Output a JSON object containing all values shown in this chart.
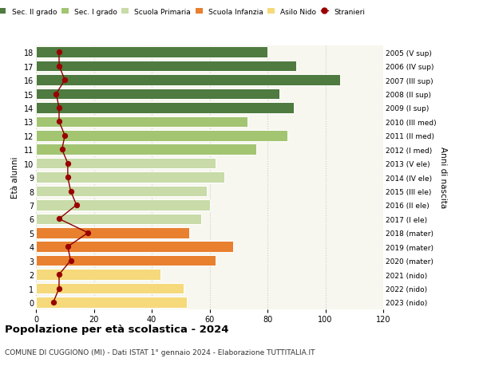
{
  "ages": [
    0,
    1,
    2,
    3,
    4,
    5,
    6,
    7,
    8,
    9,
    10,
    11,
    12,
    13,
    14,
    15,
    16,
    17,
    18
  ],
  "labels_right": [
    "2023 (nido)",
    "2022 (nido)",
    "2021 (nido)",
    "2020 (mater)",
    "2019 (mater)",
    "2018 (mater)",
    "2017 (I ele)",
    "2016 (II ele)",
    "2015 (III ele)",
    "2014 (IV ele)",
    "2013 (V ele)",
    "2012 (I med)",
    "2011 (II med)",
    "2010 (III med)",
    "2009 (I sup)",
    "2008 (II sup)",
    "2007 (III sup)",
    "2006 (IV sup)",
    "2005 (V sup)"
  ],
  "bar_values": [
    52,
    51,
    43,
    62,
    68,
    53,
    57,
    60,
    59,
    65,
    62,
    76,
    87,
    73,
    89,
    84,
    105,
    90,
    80
  ],
  "bar_colors": [
    "#f5d97a",
    "#f5d97a",
    "#f5d97a",
    "#e88030",
    "#e88030",
    "#e88030",
    "#c8dba8",
    "#c8dba8",
    "#c8dba8",
    "#c8dba8",
    "#c8dba8",
    "#a3c572",
    "#a3c572",
    "#a3c572",
    "#4f7a40",
    "#4f7a40",
    "#4f7a40",
    "#4f7a40",
    "#4f7a40"
  ],
  "stranieri": [
    6,
    8,
    8,
    12,
    11,
    18,
    8,
    14,
    12,
    11,
    11,
    9,
    10,
    8,
    8,
    7,
    10,
    8,
    8
  ],
  "legend_labels": [
    "Sec. II grado",
    "Sec. I grado",
    "Scuola Primaria",
    "Scuola Infanzia",
    "Asilo Nido",
    "Stranieri"
  ],
  "legend_colors": [
    "#4f7a40",
    "#a3c572",
    "#c8dba8",
    "#e88030",
    "#f5d97a",
    "#990000"
  ],
  "title": "Popolazione per età scolastica - 2024",
  "subtitle": "COMUNE DI CUGGIONO (MI) - Dati ISTAT 1° gennaio 2024 - Elaborazione TUTTITALIA.IT",
  "ylabel": "Età alunni",
  "ylabel_right": "Anni di nascita",
  "xlim": [
    0,
    120
  ],
  "xticks": [
    0,
    20,
    40,
    60,
    80,
    100,
    120
  ],
  "background_color": "#ffffff",
  "plot_bg_color": "#f7f7ef",
  "grid_color": "#cccccc"
}
